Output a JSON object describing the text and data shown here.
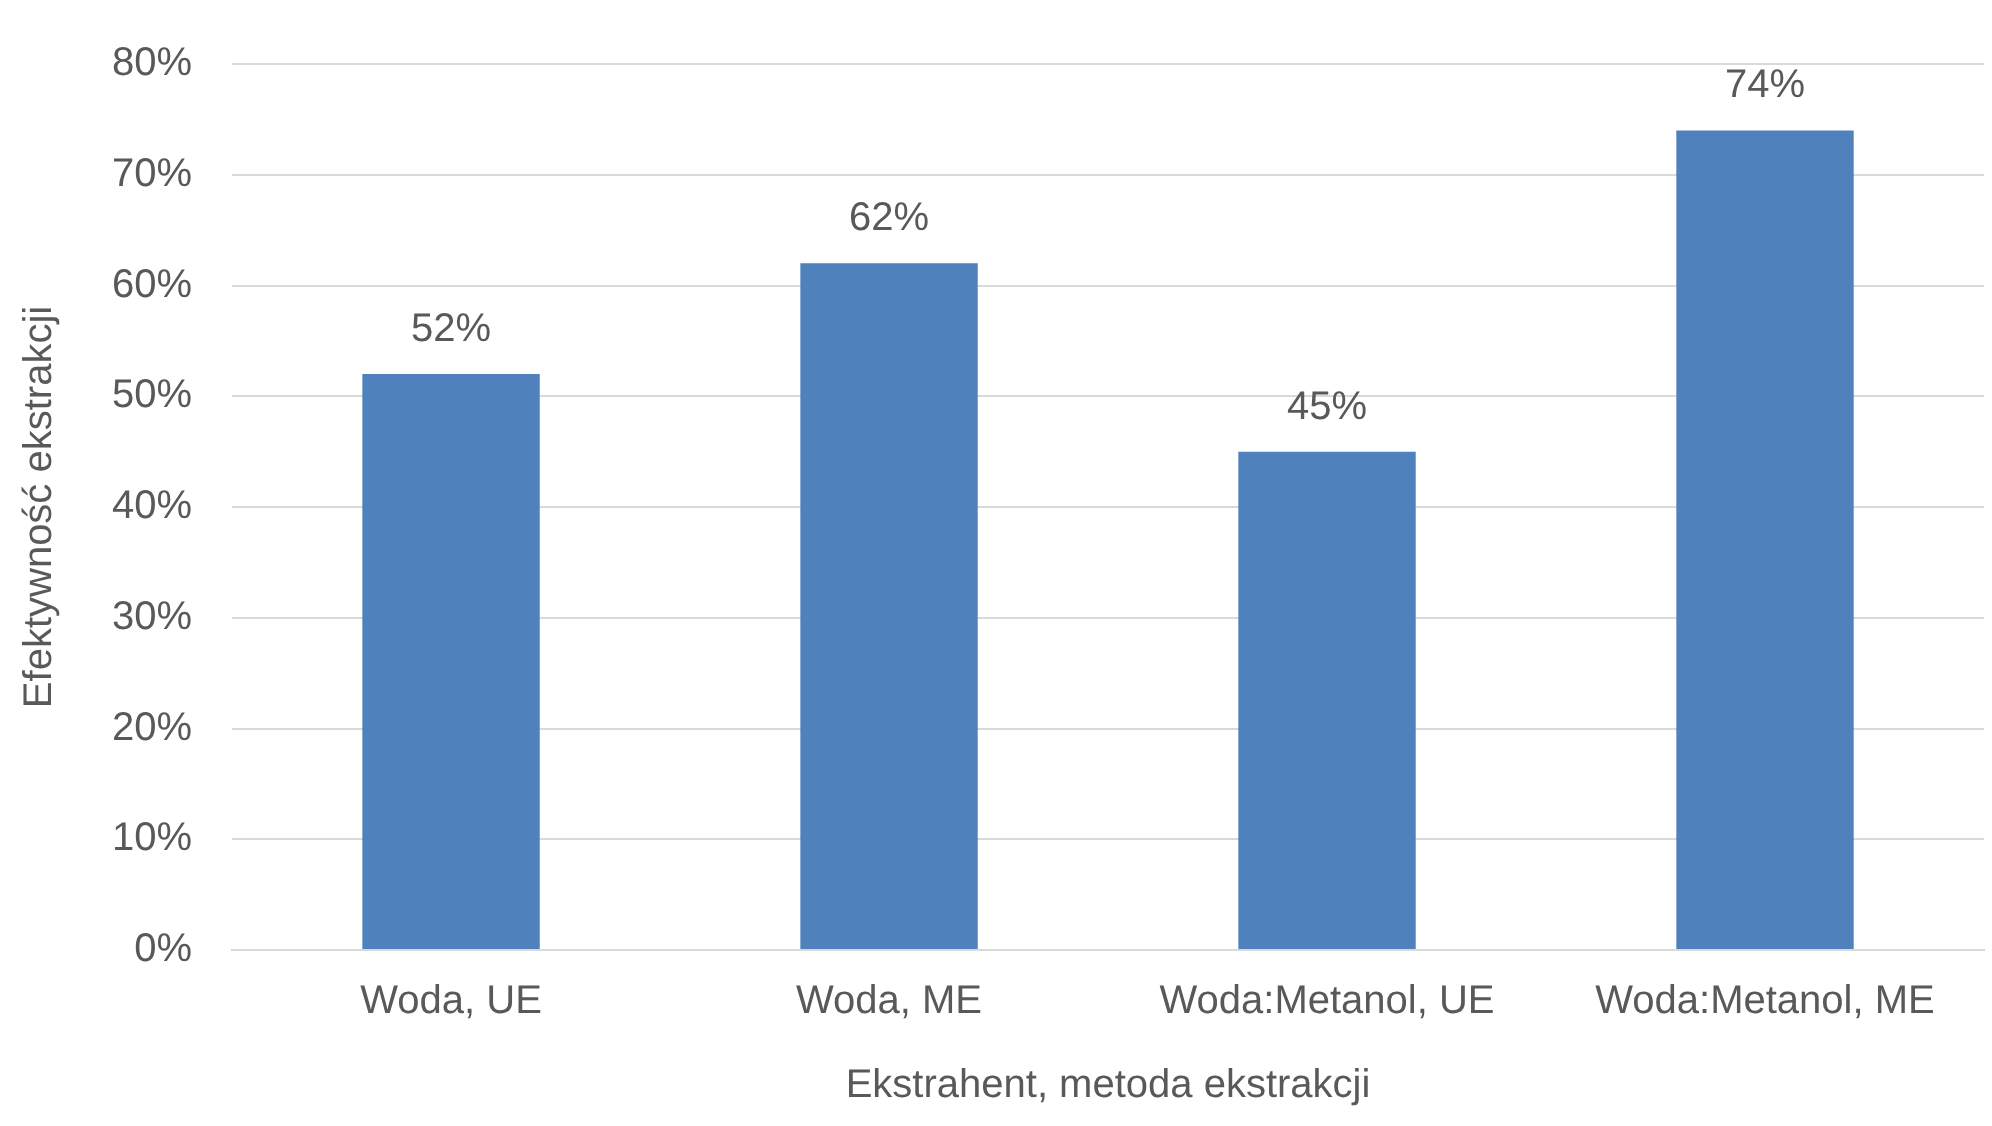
{
  "chart_data": {
    "type": "bar",
    "xlabel": "Ekstrahent, metoda ekstrakcji",
    "ylabel": "Efektywność ekstrakcji",
    "categories": [
      "Woda, UE",
      "Woda, ME",
      "Woda:Metanol, UE",
      "Woda:Metanol, ME"
    ],
    "values": [
      52,
      62,
      45,
      74
    ],
    "color": "#4f81bd",
    "value_labels": [
      "52%",
      "62%",
      "45%",
      "74%"
    ],
    "ylim": [
      0,
      80
    ],
    "yticks": [
      {
        "value": 0,
        "label": "0%"
      },
      {
        "value": 10,
        "label": "10%"
      },
      {
        "value": 20,
        "label": "20%"
      },
      {
        "value": 30,
        "label": "30%"
      },
      {
        "value": 40,
        "label": "40%"
      },
      {
        "value": 50,
        "label": "50%"
      },
      {
        "value": 60,
        "label": "60%"
      },
      {
        "value": 70,
        "label": "70%"
      },
      {
        "value": 80,
        "label": "80%"
      }
    ],
    "grid": "y",
    "legend": false
  }
}
